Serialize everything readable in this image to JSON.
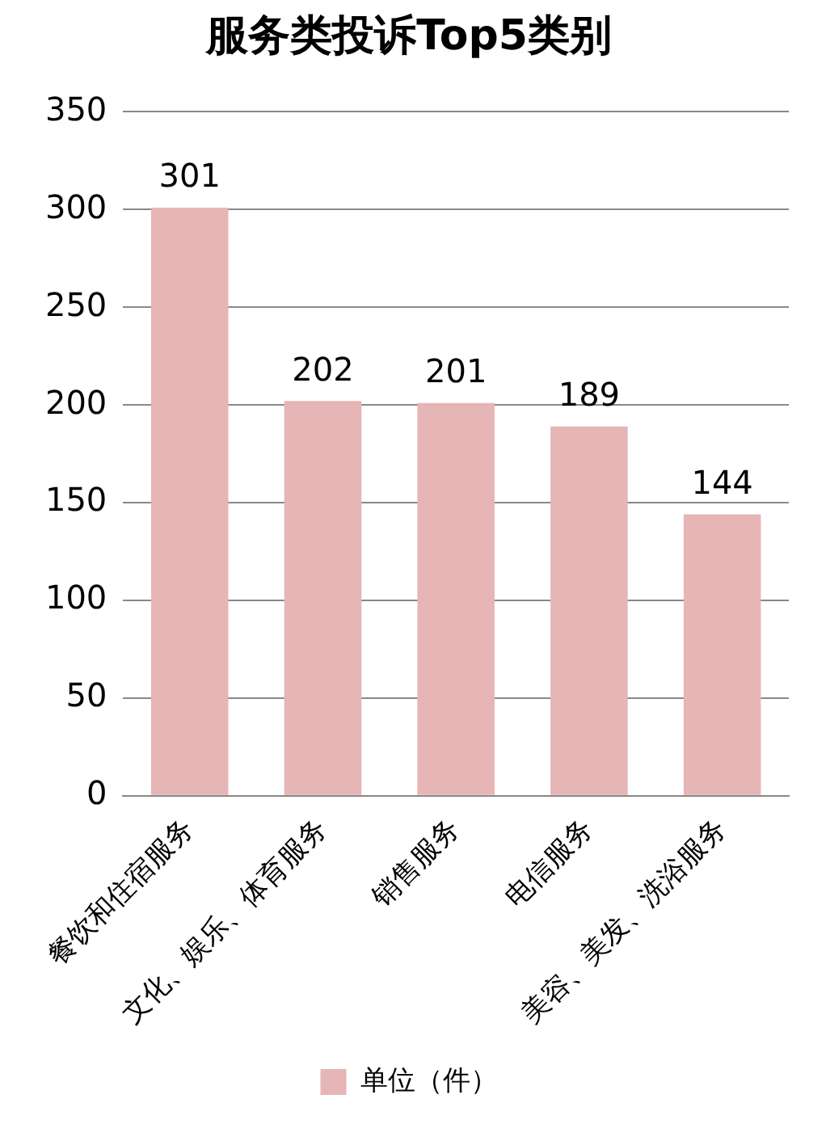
{
  "chart_data": {
    "type": "bar",
    "title": "服务类投诉Top5类别",
    "categories": [
      "餐饮和住宿服务",
      "文化、娱乐、体育服务",
      "销售服务",
      "电信服务",
      "美容、美发、洗浴服务"
    ],
    "series": [
      {
        "name": "单位（件）",
        "color": "#e6b5b5",
        "values": [
          301,
          202,
          201,
          189,
          144
        ]
      }
    ],
    "ylim": [
      0,
      350
    ],
    "yticks": [
      0,
      50,
      100,
      150,
      200,
      250,
      300,
      350
    ],
    "grid": "y",
    "legend": "bottom",
    "data_labels": true
  }
}
